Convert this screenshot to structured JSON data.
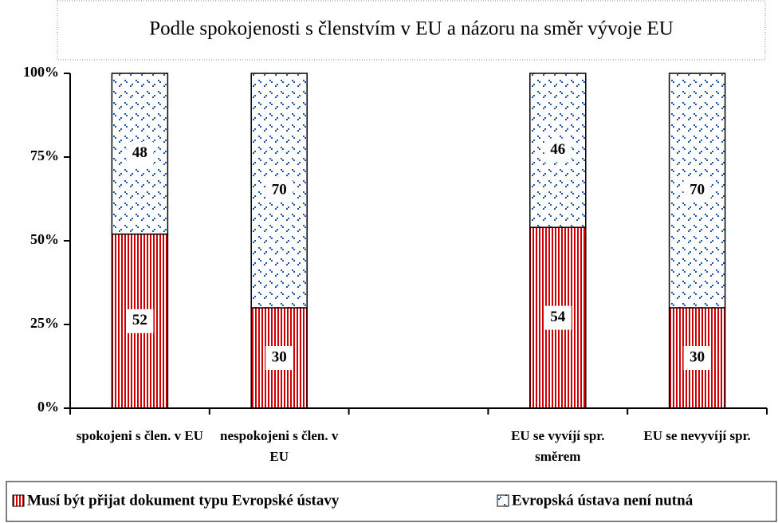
{
  "chart_data": {
    "type": "stacked_bar",
    "title": "Podle spokojenosti s členstvím v EU a názoru na směr vývoje EU",
    "categories": [
      "spokojeni s člen. v EU",
      "nespokojeni s člen. v EU",
      null,
      "EU se vyvíjí spr. směrem",
      "EU se nevyvíjí spr."
    ],
    "series": [
      {
        "name": "Musí být přijat dokument typu Evropské ústavy",
        "color": "#cc0000",
        "values": [
          52,
          30,
          null,
          54,
          30
        ]
      },
      {
        "name": "Evropská ústava není nutná",
        "color": "#1a56b0",
        "values": [
          48,
          70,
          null,
          46,
          70
        ]
      }
    ],
    "ylim": [
      0,
      100
    ],
    "yticks": [
      {
        "value": 0,
        "label": "0%"
      },
      {
        "value": 25,
        "label": "25%"
      },
      {
        "value": 50,
        "label": "50%"
      },
      {
        "value": 75,
        "label": "75%"
      },
      {
        "value": 100,
        "label": "100%"
      }
    ],
    "legend": "bottom"
  }
}
